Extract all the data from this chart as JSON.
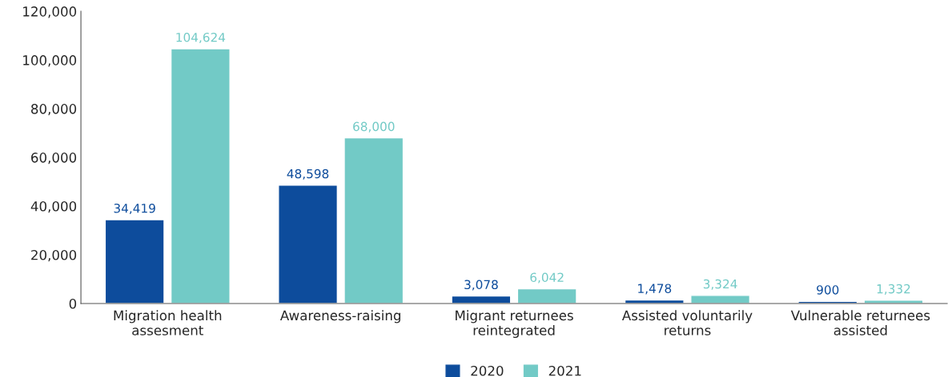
{
  "chart_data": {
    "type": "bar",
    "categories": [
      "Migration health\nassesment",
      "Awareness-raising",
      "Migrant returnees\nreintegrated",
      "Assisted voluntarily\nreturns",
      "Vulnerable returnees\nassisted"
    ],
    "series": [
      {
        "name": "2020",
        "color": "#0d4c9c",
        "values": [
          34419,
          48598,
          3078,
          1478,
          900
        ],
        "value_labels": [
          "34,419",
          "48,598",
          "3,078",
          "1,478",
          "900"
        ]
      },
      {
        "name": "2021",
        "color": "#72cac6",
        "values": [
          104624,
          68000,
          6042,
          3324,
          1332
        ],
        "value_labels": [
          "104,624",
          "68,000",
          "6,042",
          "3,324",
          "1,332"
        ]
      }
    ],
    "ylim": [
      0,
      120000
    ],
    "yticks": [
      0,
      {
        "value": 20000,
        "label": "20,000"
      },
      {
        "value": 40000,
        "label": "40,000"
      },
      {
        "value": 60000,
        "label": "60,000"
      },
      {
        "value": 80000,
        "label": "80,000"
      },
      {
        "value": 100000,
        "label": "100,000"
      },
      {
        "value": 120000,
        "label": "120,000"
      }
    ],
    "grid": false,
    "legend": "bottom"
  }
}
